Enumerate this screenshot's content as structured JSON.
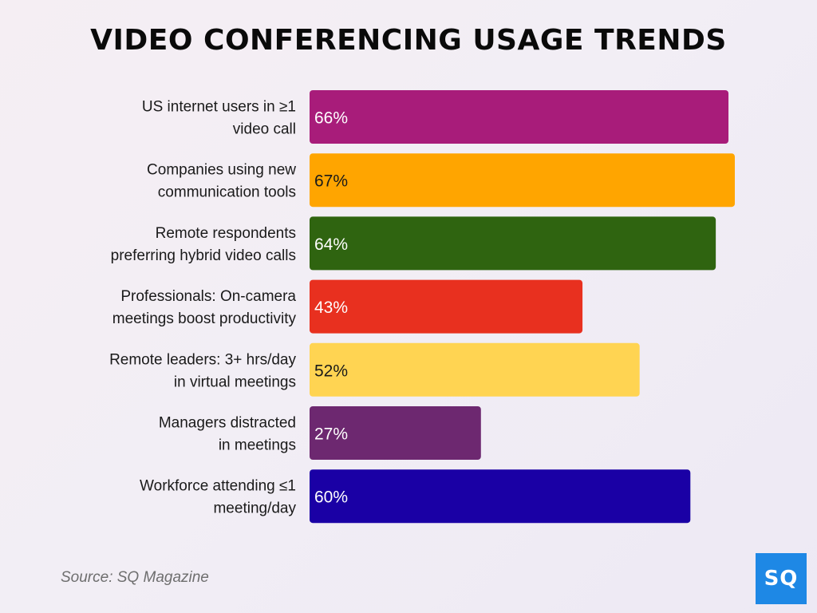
{
  "chart_data": {
    "type": "bar",
    "orientation": "horizontal",
    "title": "VIDEO CONFERENCING USAGE TRENDS",
    "categories": [
      [
        "US internet users in ≥1",
        "video call"
      ],
      [
        "Companies using new",
        "communication tools"
      ],
      [
        "Remote respondents",
        "preferring hybrid video calls"
      ],
      [
        "Professionals: On-camera",
        "meetings boost productivity"
      ],
      [
        "Remote leaders: 3+ hrs/day",
        "in virtual meetings"
      ],
      [
        "Managers distracted",
        "in meetings"
      ],
      [
        "Workforce attending ≤1",
        "meeting/day"
      ]
    ],
    "values": [
      66,
      67,
      64,
      43,
      52,
      27,
      60
    ],
    "value_labels": [
      "66%",
      "67%",
      "64%",
      "43%",
      "52%",
      "27%",
      "60%"
    ],
    "colors": [
      "#a81c7a",
      "#ffa500",
      "#2f6410",
      "#e8301f",
      "#ffd452",
      "#6d2870",
      "#1a00a5"
    ],
    "label_colors": [
      "#ffffff",
      "#1a1a1a",
      "#ffffff",
      "#ffffff",
      "#1a1a1a",
      "#ffffff",
      "#ffffff"
    ],
    "xlim": [
      0,
      67
    ],
    "grid": false,
    "legend": "none"
  },
  "source": "Source: SQ Magazine",
  "logo": {
    "text": "SQ",
    "color": "#1e88e5"
  }
}
